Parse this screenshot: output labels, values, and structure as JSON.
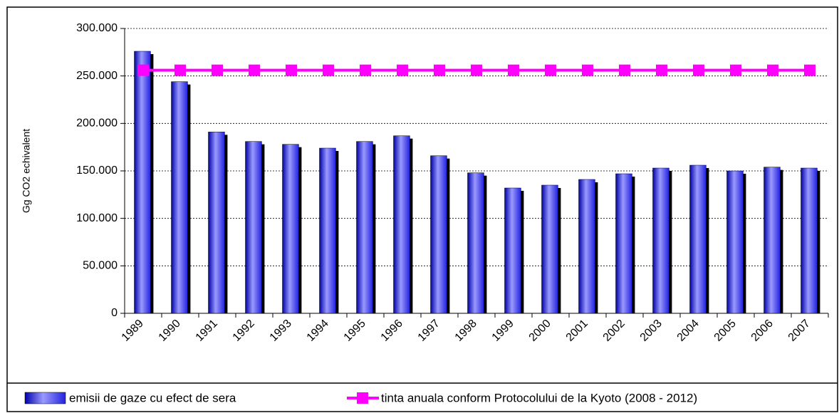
{
  "chart_data": {
    "type": "bar",
    "y_label": "Gg CO2 echivalent",
    "categories": [
      "1989",
      "1990",
      "1991",
      "1992",
      "1993",
      "1994",
      "1995",
      "1996",
      "1997",
      "1998",
      "1999",
      "2000",
      "2001",
      "2002",
      "2003",
      "2004",
      "2005",
      "2006",
      "2007"
    ],
    "series": [
      {
        "name": "emisii de gaze cu efect de sera",
        "type": "bar",
        "color": "#3333ee",
        "values": [
          276000,
          244000,
          191000,
          181000,
          178000,
          174000,
          181000,
          187000,
          166000,
          148000,
          132000,
          135000,
          141000,
          147000,
          153000,
          156000,
          150000,
          154000,
          153000
        ]
      },
      {
        "name": "tinta anuala conform Protocolului de la Kyoto (2008 - 2012)",
        "type": "line",
        "color": "#ff00ff",
        "values": [
          256000,
          256000,
          256000,
          256000,
          256000,
          256000,
          256000,
          256000,
          256000,
          256000,
          256000,
          256000,
          256000,
          256000,
          256000,
          256000,
          256000,
          256000,
          256000
        ]
      }
    ],
    "ylim": [
      0,
      300000
    ],
    "yticks": [
      0,
      {
        "value": 50000,
        "label": "50.000"
      },
      {
        "value": 100000,
        "label": "100.000"
      },
      {
        "value": 150000,
        "label": "150.000"
      },
      {
        "value": 200000,
        "label": "200.000"
      },
      {
        "value": 250000,
        "label": "250.000"
      },
      {
        "value": 300000,
        "label": "300.000"
      }
    ],
    "grid": true,
    "legend": "bottom"
  }
}
